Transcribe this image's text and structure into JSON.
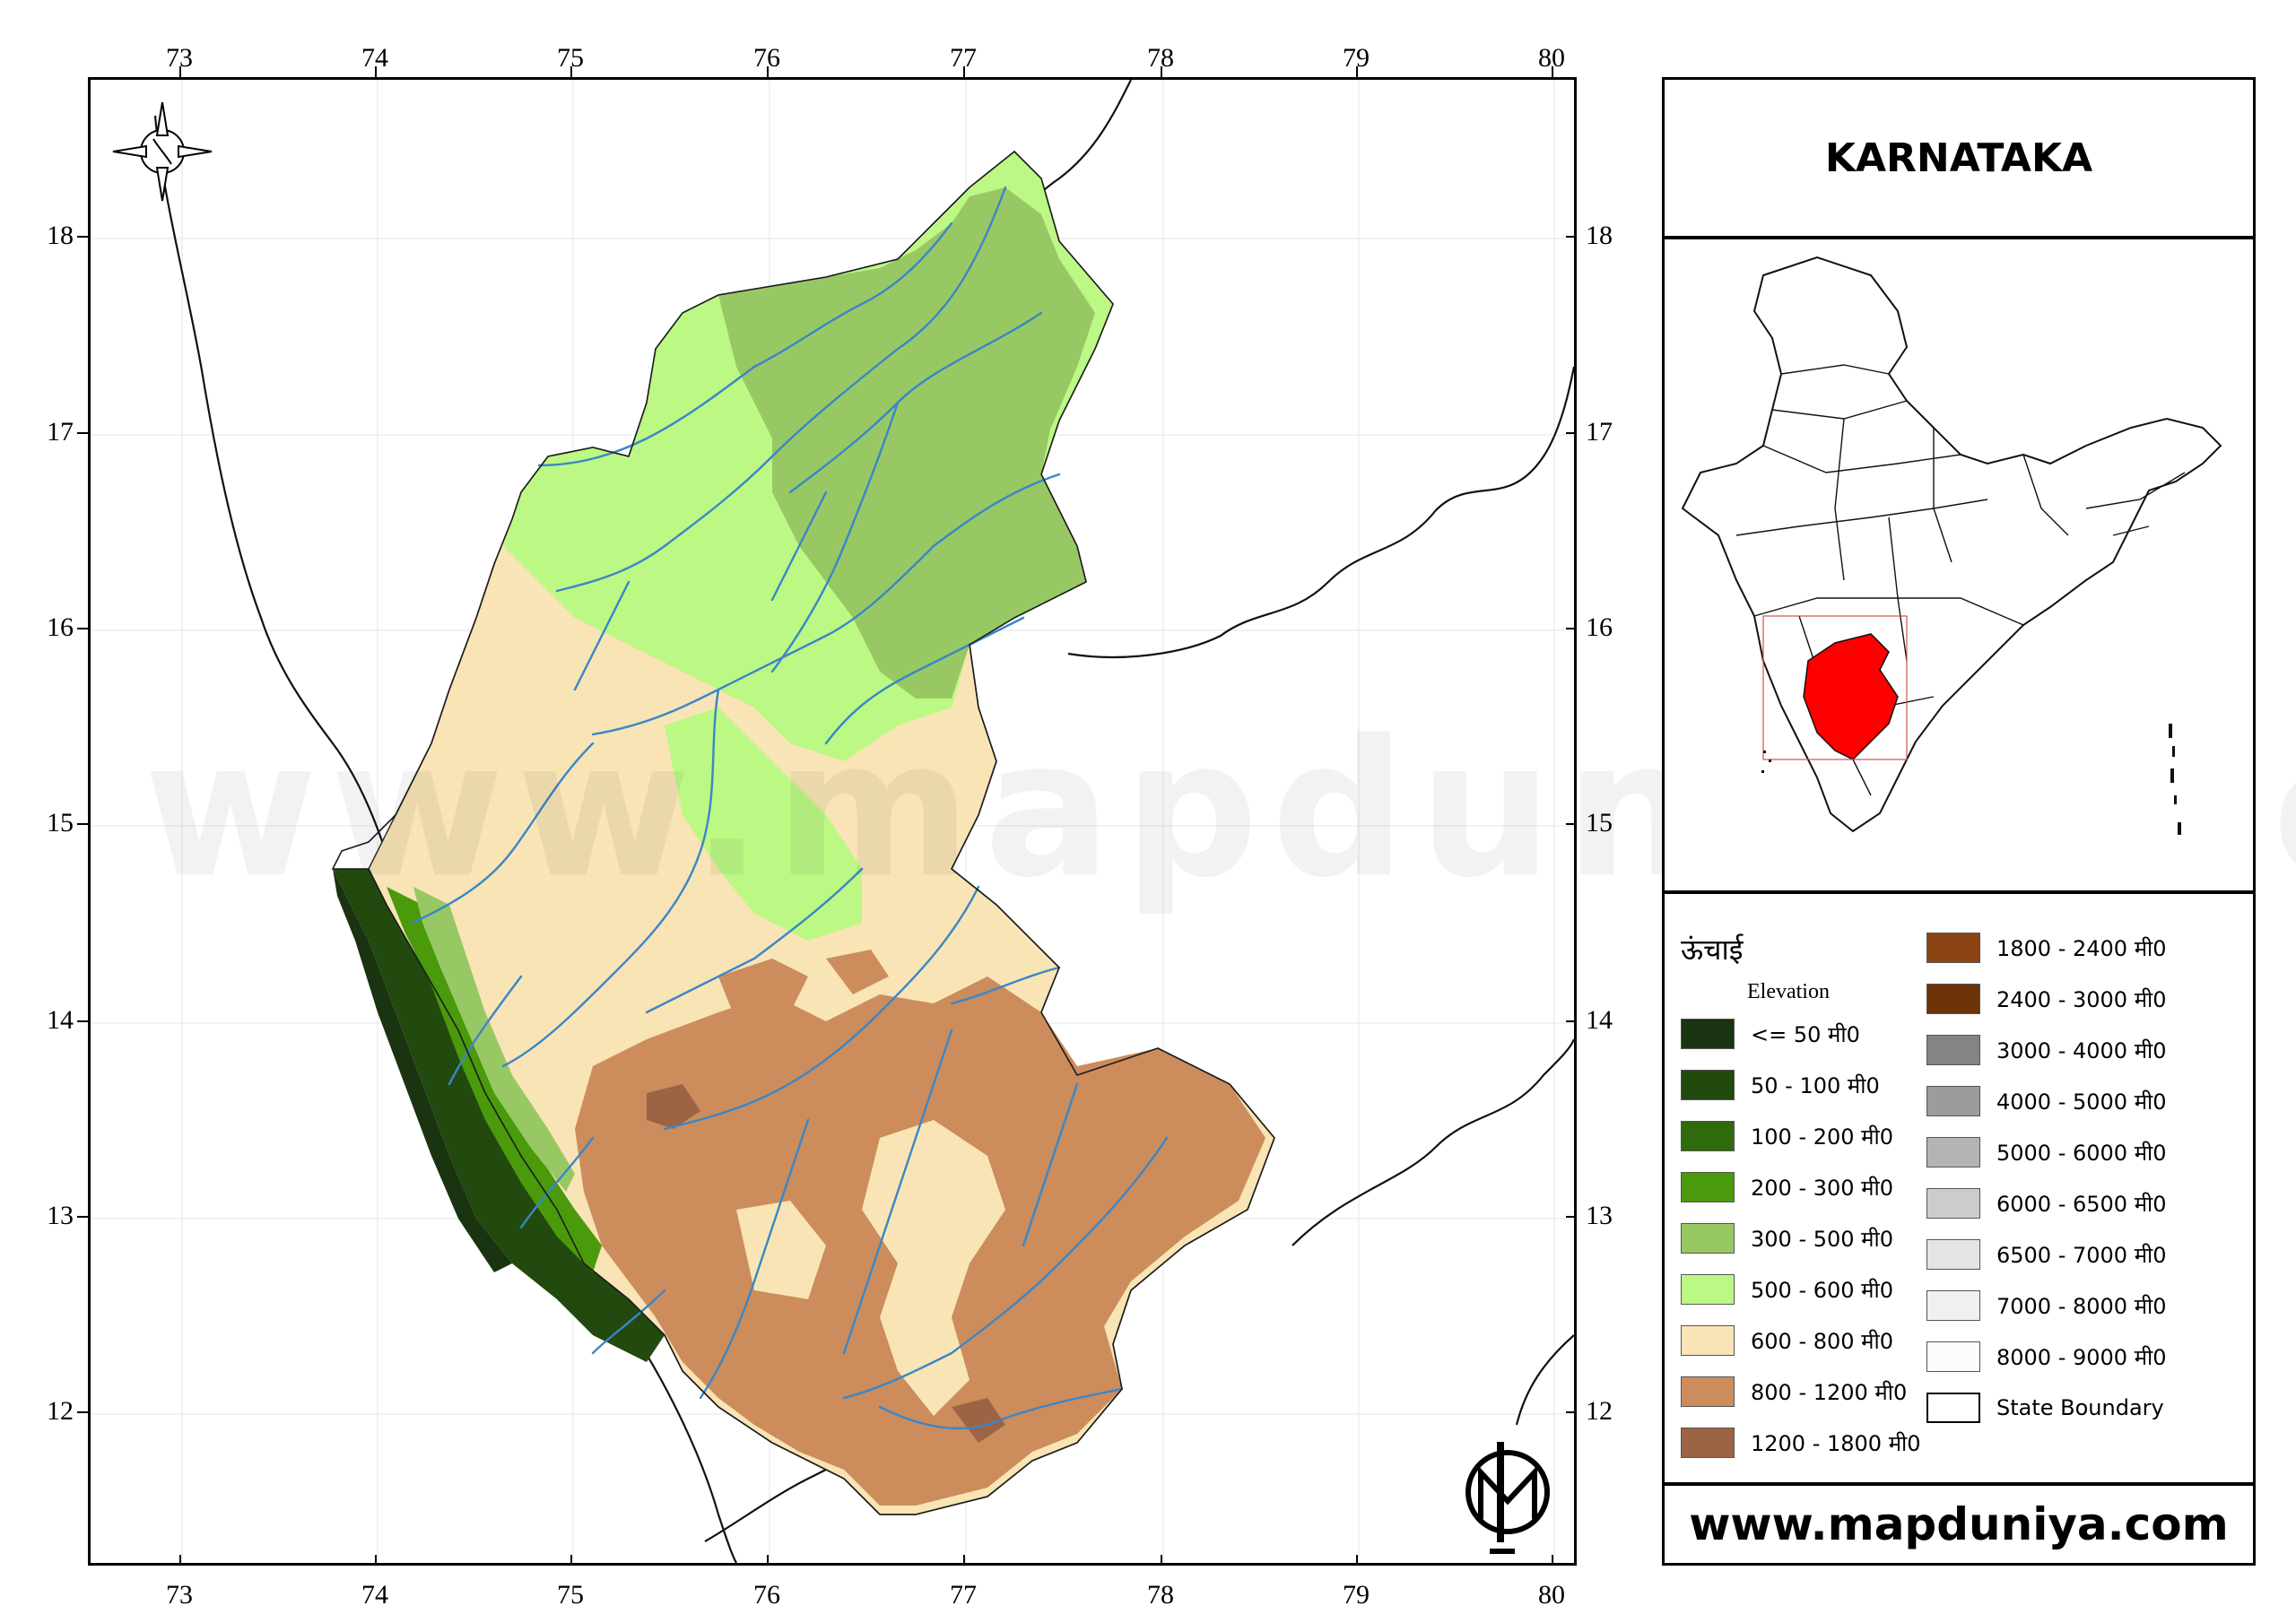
{
  "map": {
    "longitude_ticks": [
      "73",
      "74",
      "75",
      "76",
      "77",
      "78",
      "79",
      "80"
    ],
    "latitude_ticks": [
      "18",
      "17",
      "16",
      "15",
      "14",
      "13",
      "12"
    ],
    "colors": {
      "water": "#3a86c8",
      "border": "#111111",
      "highlight_state": "#ff0000"
    }
  },
  "panel": {
    "title": "KARNATAKA",
    "website": "www.mapduniya.com"
  },
  "watermark": "www.mapduniya.com",
  "legend": {
    "heading_hindi": "ऊंचाई",
    "heading": "Elevation",
    "items": [
      {
        "label": "<= 50 मी0",
        "color": "#1a3310"
      },
      {
        "label": "50 - 100 मी0",
        "color": "#224a0e"
      },
      {
        "label": "100 - 200 मी0",
        "color": "#2f6a0c"
      },
      {
        "label": "200 - 300 मी0",
        "color": "#4a9a0c"
      },
      {
        "label": "300 - 500 मी0",
        "color": "#98c864"
      },
      {
        "label": "500 - 600 मी0",
        "color": "#bcf884"
      },
      {
        "label": "600 - 800 मी0",
        "color": "#f8e4b4"
      },
      {
        "label": "800 - 1200 मी0",
        "color": "#cc8c5c"
      },
      {
        "label": "1200 - 1800 मी0",
        "color": "#9c6444"
      },
      {
        "label": "1800 - 2400 मी0",
        "color": "#8c4414"
      },
      {
        "label": "2400 - 3000 मी0",
        "color": "#6c3408"
      },
      {
        "label": "3000 - 4000 मी0",
        "color": "#848484"
      },
      {
        "label": "4000 - 5000 मी0",
        "color": "#9c9c9c"
      },
      {
        "label": "5000 - 6000 मी0",
        "color": "#b4b4b4"
      },
      {
        "label": "6000 - 6500 मी0",
        "color": "#cccccc"
      },
      {
        "label": "6500 - 7000 मी0",
        "color": "#e4e4e4"
      },
      {
        "label": "7000 - 8000 मी0",
        "color": "#f0f0f0"
      },
      {
        "label": "8000 - 9000 मी0",
        "color": "#fcfcfc"
      },
      {
        "label": "State Boundary",
        "color": "#ffffff"
      }
    ]
  }
}
